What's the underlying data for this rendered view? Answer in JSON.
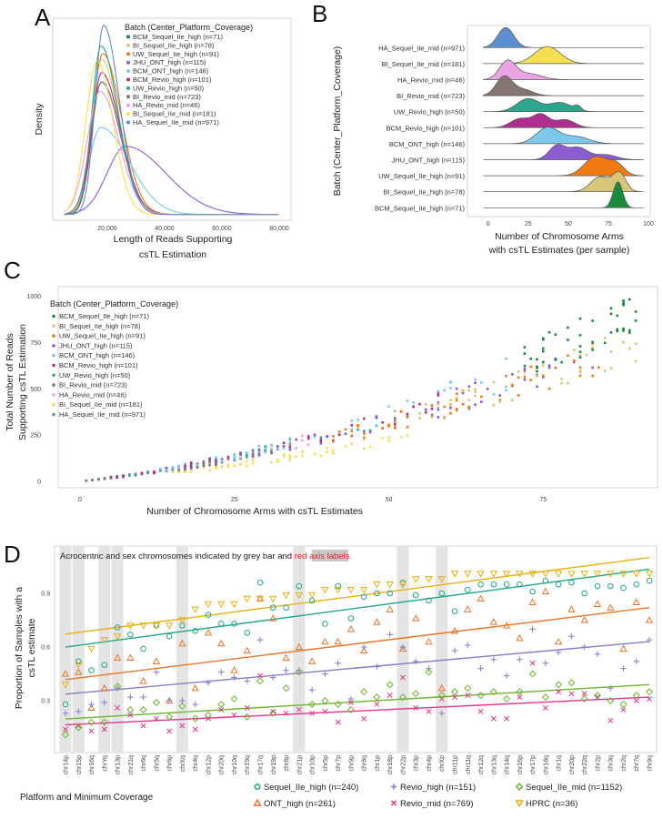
{
  "panels": {
    "A": "A",
    "B": "B",
    "C": "C",
    "D": "D"
  },
  "batches": [
    {
      "name": "BCM_Sequel_IIe_high (n=71)",
      "color": "#1b8a3c"
    },
    {
      "name": "BI_Sequel_IIe_high (n=78)",
      "color": "#d9c57a"
    },
    {
      "name": "UW_Sequel_IIe_high (n=91)",
      "color": "#ef7b12"
    },
    {
      "name": "JHU_ONT_high (n=115)",
      "color": "#8b5cd2"
    },
    {
      "name": "BCM_ONT_high (n=146)",
      "color": "#7cc9ea"
    },
    {
      "name": "BCM_Revio_high (n=101)",
      "color": "#ad2f8f"
    },
    {
      "name": "UW_Revio_high (n=50)",
      "color": "#2ca68c"
    },
    {
      "name": "BI_Revio_mid (n=723)",
      "color": "#857571"
    },
    {
      "name": "HA_Revio_mid (n=46)",
      "color": "#eba3e3"
    },
    {
      "name": "BI_Sequel_IIe_mid (n=181)",
      "color": "#f7df52"
    },
    {
      "name": "HA_Sequel_IIe_mid (n=971)",
      "color": "#5b8fd0"
    }
  ],
  "chart_data": [
    {
      "type": "line",
      "xlabel": [
        "Length of Reads Supporting",
        "csTL Estimation"
      ],
      "ylabel": "Density",
      "legend_title": "Batch (Center_Platform_Coverage)",
      "legend_position": "top-right",
      "xlim": [
        5000,
        80000
      ],
      "x_ticks": [
        20000,
        40000,
        60000,
        80000
      ],
      "x_tick_labels": [
        "20,000",
        "40,000",
        "60,000",
        "80,000"
      ],
      "series": [
        {
          "batch": 0,
          "mode": 18000,
          "peak": 0.7,
          "sd_left": 3500,
          "sd_right": 6500
        },
        {
          "batch": 1,
          "mode": 18000,
          "peak": 0.82,
          "sd_left": 3500,
          "sd_right": 6000
        },
        {
          "batch": 2,
          "mode": 18400,
          "peak": 0.85,
          "sd_left": 3500,
          "sd_right": 6500
        },
        {
          "batch": 3,
          "mode": 26400,
          "peak": 0.36,
          "sd_left": 6500,
          "sd_right": 14000
        },
        {
          "batch": 4,
          "mode": 17700,
          "peak": 0.46,
          "sd_left": 4000,
          "sd_right": 10000
        },
        {
          "batch": 5,
          "mode": 18000,
          "peak": 0.75,
          "sd_left": 3300,
          "sd_right": 6500
        },
        {
          "batch": 6,
          "mode": 17800,
          "peak": 0.89,
          "sd_left": 3200,
          "sd_right": 6000
        },
        {
          "batch": 7,
          "mode": 18000,
          "peak": 0.7,
          "sd_left": 3800,
          "sd_right": 6500
        },
        {
          "batch": 8,
          "mode": 17500,
          "peak": 0.65,
          "sd_left": 4500,
          "sd_right": 6500
        },
        {
          "batch": 9,
          "mode": 16500,
          "peak": 0.81,
          "sd_left": 4000,
          "sd_right": 5500
        },
        {
          "batch": 10,
          "mode": 18700,
          "peak": 1.0,
          "sd_left": 3000,
          "sd_right": 5500
        }
      ]
    },
    {
      "type": "ridgeline",
      "xlabel": [
        "Number of Chromosome Arms",
        "with csTL Estimates (per sample)"
      ],
      "ylabel": "Batch (Center_Platform_Coverage)",
      "xlim": [
        -3,
        97
      ],
      "x_ticks": [
        0,
        25,
        50,
        75,
        100
      ],
      "rows": [
        {
          "batch": 10,
          "components": [
            [
              11,
              5,
              1
            ]
          ]
        },
        {
          "batch": 9,
          "components": [
            [
              37,
              8,
              0.85
            ]
          ]
        },
        {
          "batch": 8,
          "components": [
            [
              12,
              5,
              0.9
            ],
            [
              25,
              8,
              0.3
            ]
          ]
        },
        {
          "batch": 7,
          "components": [
            [
              10,
              5,
              0.95
            ],
            [
              22,
              6,
              0.3
            ]
          ]
        },
        {
          "batch": 6,
          "components": [
            [
              25,
              7,
              0.65
            ],
            [
              45,
              7,
              0.45
            ],
            [
              56,
              2,
              0.2
            ]
          ]
        },
        {
          "batch": 5,
          "components": [
            [
              20,
              6,
              0.45
            ],
            [
              33,
              5,
              0.65
            ],
            [
              48,
              6,
              0.4
            ]
          ]
        },
        {
          "batch": 4,
          "components": [
            [
              37,
              7,
              0.8
            ],
            [
              55,
              8,
              0.35
            ]
          ]
        },
        {
          "batch": 3,
          "components": [
            [
              43,
              5,
              0.7
            ],
            [
              56,
              6,
              0.6
            ],
            [
              73,
              7,
              0.25
            ]
          ]
        },
        {
          "batch": 2,
          "components": [
            [
              67,
              7,
              0.95
            ],
            [
              80,
              5,
              0.55
            ]
          ]
        },
        {
          "batch": 1,
          "components": [
            [
              70,
              6,
              0.75
            ],
            [
              82,
              4,
              0.9
            ]
          ]
        },
        {
          "batch": 0,
          "components": [
            [
              81,
              3,
              1.3
            ]
          ]
        }
      ]
    },
    {
      "type": "scatter",
      "xlabel": "Number of Chromosome Arms with csTL Estimates",
      "ylabel": [
        "Total Number of Reads",
        "Supporting csTL Estimation"
      ],
      "legend_title": "Batch (Center_Platform_Coverage)",
      "legend_position": "top-left",
      "xlim": [
        -3,
        91
      ],
      "ylim": [
        0,
        1000
      ],
      "x_ticks": [
        0,
        25,
        50,
        75
      ],
      "y_ticks": [
        0,
        250,
        500,
        750,
        1000
      ],
      "trend_formula": "y ≈ k·(3.5x + 0.055x²)",
      "series": [
        {
          "batch": 10,
          "x_range": [
            1,
            30
          ],
          "k": 1.05,
          "points": 60
        },
        {
          "batch": 9,
          "x_range": [
            15,
            54
          ],
          "k": 0.72,
          "points": 50
        },
        {
          "batch": 8,
          "x_range": [
            5,
            40
          ],
          "k": 1.1,
          "points": 20
        },
        {
          "batch": 7,
          "x_range": [
            1,
            35
          ],
          "k": 1.0,
          "points": 50
        },
        {
          "batch": 6,
          "x_range": [
            5,
            60
          ],
          "k": 1.1,
          "points": 30
        },
        {
          "batch": 5,
          "x_range": [
            5,
            60
          ],
          "k": 1.1,
          "points": 40
        },
        {
          "batch": 4,
          "x_range": [
            10,
            70
          ],
          "k": 1.15,
          "points": 50
        },
        {
          "batch": 3,
          "x_range": [
            20,
            85
          ],
          "k": 1.05,
          "points": 50
        },
        {
          "batch": 2,
          "x_range": [
            40,
            85
          ],
          "k": 1.0,
          "points": 55
        },
        {
          "batch": 1,
          "x_range": [
            55,
            90
          ],
          "k": 1.0,
          "points": 45
        },
        {
          "batch": 0,
          "x_range": [
            72,
            90
          ],
          "k": 1.22,
          "points": 45
        }
      ]
    },
    {
      "type": "scatter",
      "annotation": {
        "pre": "Acrocentric and sex chromosomes indicated by ",
        "grey": "grey bar",
        "mid": " and ",
        "red": "red axis labels."
      },
      "ylabel": [
        "Proportion of Samples with a",
        "csTL estimate"
      ],
      "ylim": [
        0.01,
        1.15
      ],
      "y_ticks": [
        0.3,
        0.6,
        0.9
      ],
      "y_tick_labels": [
        "0.3",
        "0.6",
        "0.9"
      ],
      "categories": [
        "chr14p",
        "chr15p",
        "chr16q",
        "chrYq",
        "chr13p",
        "chr21q",
        "chr6q",
        "chr5q",
        "chr6p",
        "chrXq",
        "chr4q",
        "chr12p",
        "chr20q",
        "chr10q",
        "chr19q",
        "chr17q",
        "chr19p",
        "chr8p",
        "chr21p",
        "chr10p",
        "chr5p",
        "chr7p",
        "chr9p",
        "chr8q",
        "chr1p",
        "chr18p",
        "chr22p",
        "chr3p",
        "chr4p",
        "chrXp",
        "chr11p",
        "chr11q",
        "chr12q",
        "chr13q",
        "chr14q",
        "chr16p",
        "chr17p",
        "chr18q",
        "chr1q",
        "chr20p",
        "chr22q",
        "chr2p",
        "chr3q",
        "chr2q",
        "chr7q",
        "chr9q"
      ],
      "highlighted": [
        "chr14p",
        "chr15p",
        "chrYq",
        "chr13p",
        "chrXq",
        "chr21p",
        "chr22p",
        "chrXp"
      ],
      "highlight_color": "#d9262c",
      "legend_title": "Platform and Minimum Coverage",
      "legend_position": "bottom",
      "series": [
        {
          "name": "Sequel_IIe_high (n=240)",
          "color": "#1fa98a",
          "marker": "circle",
          "trend": [
            0.6,
            1.035
          ],
          "values": [
            0.28,
            0.52,
            0.47,
            0.5,
            0.71,
            0.67,
            0.59,
            0.72,
            0.66,
            0.72,
            0.69,
            0.78,
            0.73,
            0.73,
            0.68,
            0.96,
            0.82,
            0.82,
            0.94,
            0.86,
            0.73,
            0.94,
            0.76,
            0.88,
            0.9,
            0.9,
            0.96,
            0.89,
            0.86,
            0.9,
            0.8,
            0.92,
            0.95,
            0.95,
            0.95,
            0.95,
            0.91,
            0.97,
            0.95,
            0.96,
            0.9,
            0.94,
            0.94,
            0.93,
            0.95,
            0.97
          ]
        },
        {
          "name": "ONT_high (n=261)",
          "color": "#e8762a",
          "marker": "triangle-up",
          "trend": [
            0.418,
            0.82
          ],
          "values": [
            0.45,
            0.46,
            0.26,
            0.37,
            0.54,
            0.54,
            0.41,
            0.52,
            0.3,
            0.62,
            0.37,
            0.68,
            0.62,
            0.47,
            0.58,
            0.87,
            0.76,
            0.54,
            0.6,
            0.52,
            0.63,
            0.63,
            0.7,
            0.58,
            0.74,
            0.81,
            0.59,
            0.76,
            0.63,
            0.37,
            0.69,
            0.81,
            0.87,
            0.74,
            0.72,
            0.65,
            0.85,
            0.91,
            0.63,
            0.81,
            0.75,
            0.84,
            0.82,
            0.59,
            0.85,
            0.75
          ]
        },
        {
          "name": "Revio_high (n=151)",
          "color": "#8a7cc8",
          "marker": "plus",
          "trend": [
            0.337,
            0.63
          ],
          "values": [
            0.23,
            0.24,
            0.28,
            0.29,
            0.37,
            0.32,
            0.32,
            0.46,
            0.3,
            0.3,
            0.28,
            0.4,
            0.46,
            0.43,
            0.41,
            0.64,
            0.43,
            0.47,
            0.47,
            0.36,
            0.45,
            0.51,
            0.31,
            0.6,
            0.49,
            0.67,
            0.6,
            0.52,
            0.48,
            0.23,
            0.58,
            0.61,
            0.48,
            0.53,
            0.44,
            0.53,
            0.7,
            0.51,
            0.57,
            0.66,
            0.6,
            0.56,
            0.37,
            0.48,
            0.52,
            0.64
          ]
        },
        {
          "name": "Revio_mid (n=769)",
          "color": "#e3358e",
          "marker": "cross",
          "trend": [
            0.165,
            0.32
          ],
          "values": [
            0.14,
            0.16,
            0.13,
            0.14,
            0.26,
            0.22,
            0.16,
            0.2,
            0.13,
            0.16,
            0.14,
            0.2,
            0.25,
            0.22,
            0.26,
            0.44,
            0.24,
            0.23,
            0.25,
            0.23,
            0.24,
            0.18,
            0.29,
            0.2,
            0.28,
            0.33,
            0.43,
            0.26,
            0.24,
            0.31,
            0.32,
            0.33,
            0.24,
            0.2,
            0.2,
            0.32,
            0.51,
            0.26,
            0.35,
            0.34,
            0.34,
            0.32,
            0.19,
            0.25,
            0.3,
            0.31
          ]
        },
        {
          "name": "Sequel_IIe_mid (n=1152)",
          "color": "#6cb52e",
          "marker": "diamond",
          "trend": [
            0.198,
            0.39
          ],
          "values": [
            0.11,
            0.15,
            0.18,
            0.18,
            0.38,
            0.25,
            0.25,
            0.29,
            0.21,
            0.27,
            0.2,
            0.22,
            0.28,
            0.31,
            0.21,
            0.41,
            0.23,
            0.37,
            0.46,
            0.28,
            0.3,
            0.28,
            0.25,
            0.35,
            0.32,
            0.39,
            0.32,
            0.34,
            0.46,
            0.33,
            0.35,
            0.37,
            0.33,
            0.35,
            0.31,
            0.35,
            0.45,
            0.32,
            0.39,
            0.4,
            0.31,
            0.33,
            0.3,
            0.28,
            0.33,
            0.35
          ]
        },
        {
          "name": "HPRC (n=36)",
          "color": "#e8b00e",
          "marker": "triangle-down",
          "trend": [
            0.672,
            1.1
          ],
          "values": [
            0.39,
            0.5,
            0.59,
            0.64,
            0.66,
            0.72,
            0.72,
            0.72,
            0.72,
            0.75,
            0.81,
            0.84,
            0.84,
            0.84,
            0.87,
            0.87,
            0.87,
            0.89,
            0.89,
            0.89,
            0.92,
            0.92,
            0.92,
            0.92,
            0.95,
            0.95,
            0.95,
            0.98,
            0.98,
            0.98,
            1.01,
            1.01,
            1.01,
            1.01,
            1.01,
            1.01,
            1.01,
            1.01,
            1.01,
            1.01,
            1.01,
            1.01,
            1.01,
            1.01,
            1.01,
            1.01
          ]
        }
      ]
    }
  ]
}
